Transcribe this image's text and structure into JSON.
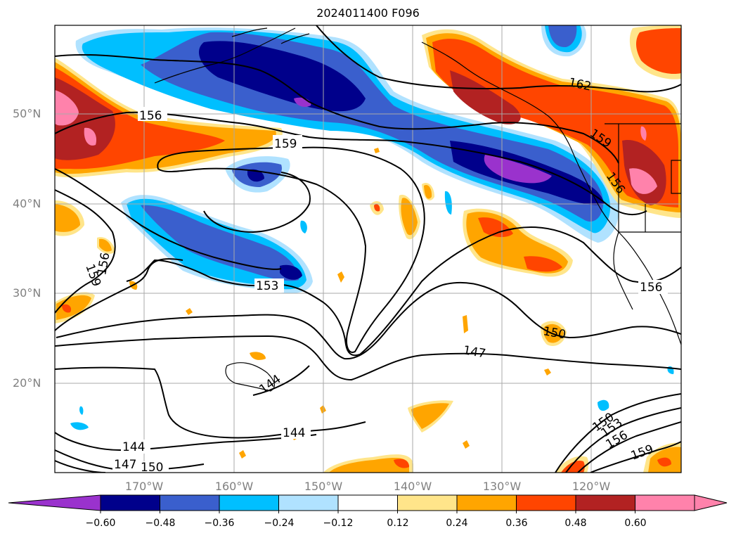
{
  "title": "2024011400 F096",
  "lat_labels": [
    "50°N",
    "40°N",
    "30°N",
    "20°N"
  ],
  "lon_labels": [
    "170°W",
    "160°W",
    "150°W",
    "140°W",
    "130°W",
    "120°W"
  ],
  "colorbar": {
    "ticks": [
      "−0.60",
      "−0.48",
      "−0.36",
      "−0.24",
      "−0.12",
      "0.12",
      "0.24",
      "0.36",
      "0.48",
      "0.60"
    ],
    "colors": [
      "#9a32cd",
      "#00008b",
      "#3a5fcd",
      "#00bfff",
      "#b0e2ff",
      "#ffffff",
      "#ffe58a",
      "#ffa500",
      "#ff4500",
      "#b22222",
      "#ff82ab",
      "#ff82ab"
    ]
  },
  "contour_labels": [
    "156",
    "159",
    "162",
    "159",
    "156",
    "156",
    "159",
    "153",
    "156",
    "150",
    "147",
    "144",
    "144",
    "144",
    "147",
    "150",
    "150",
    "153",
    "156",
    "159"
  ]
}
